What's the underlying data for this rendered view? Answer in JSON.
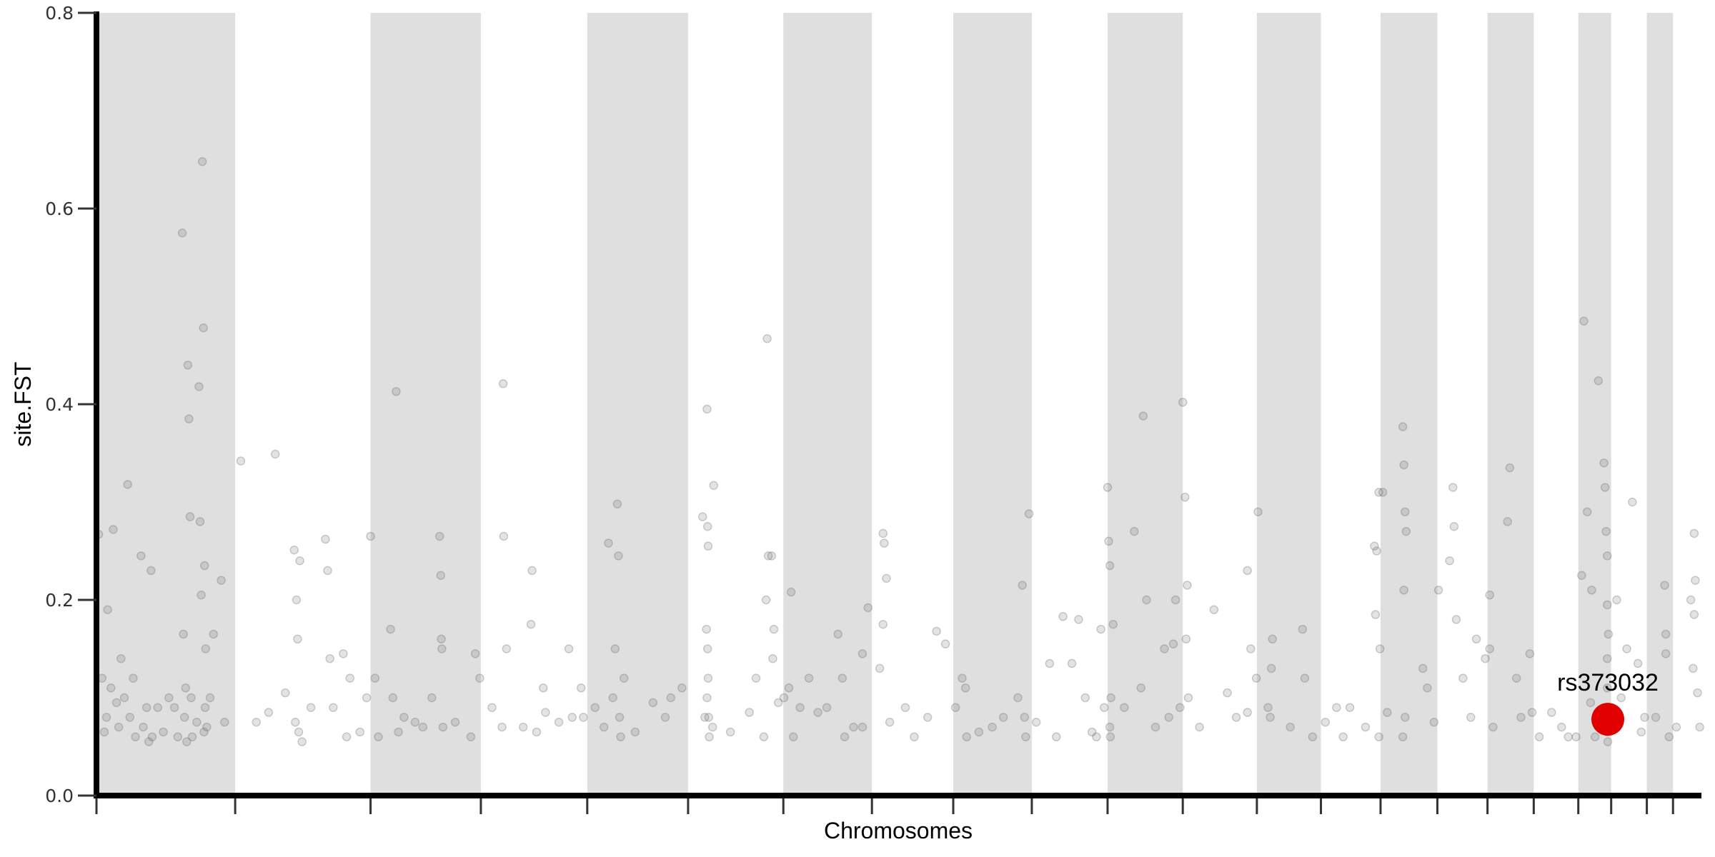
{
  "chart_data": {
    "type": "scatter",
    "subtype": "manhattan",
    "title": "",
    "xlabel": "Chromosomes",
    "ylabel": "site.FST",
    "ylim": [
      0,
      0.8
    ],
    "yticks": [
      "0.0",
      "0.2",
      "0.4",
      "0.6",
      "0.8"
    ],
    "grid": false,
    "x_tick_labels_shown": false,
    "colors": {
      "band": "#dfdfdf",
      "point": "#646464",
      "highlight": "#e00000"
    },
    "chromosomes": [
      {
        "name": "1",
        "length_mb": 249
      },
      {
        "name": "2",
        "length_mb": 243
      },
      {
        "name": "3",
        "length_mb": 198
      },
      {
        "name": "4",
        "length_mb": 191
      },
      {
        "name": "5",
        "length_mb": 181
      },
      {
        "name": "6",
        "length_mb": 171
      },
      {
        "name": "7",
        "length_mb": 159
      },
      {
        "name": "8",
        "length_mb": 146
      },
      {
        "name": "9",
        "length_mb": 141
      },
      {
        "name": "10",
        "length_mb": 136
      },
      {
        "name": "11",
        "length_mb": 135
      },
      {
        "name": "12",
        "length_mb": 133
      },
      {
        "name": "13",
        "length_mb": 115
      },
      {
        "name": "14",
        "length_mb": 107
      },
      {
        "name": "15",
        "length_mb": 102
      },
      {
        "name": "16",
        "length_mb": 90
      },
      {
        "name": "17",
        "length_mb": 83
      },
      {
        "name": "18",
        "length_mb": 80
      },
      {
        "name": "19",
        "length_mb": 59
      },
      {
        "name": "20",
        "length_mb": 64
      },
      {
        "name": "21",
        "length_mb": 47
      },
      {
        "name": "22",
        "length_mb": 51
      }
    ],
    "points_columns": [
      "chromosome",
      "position_mb",
      "site_fst"
    ],
    "points": [
      [
        1,
        4,
        0.267
      ],
      [
        1,
        10,
        0.12
      ],
      [
        1,
        14,
        0.065
      ],
      [
        1,
        18,
        0.08
      ],
      [
        1,
        20,
        0.19
      ],
      [
        1,
        26,
        0.11
      ],
      [
        1,
        30,
        0.272
      ],
      [
        1,
        36,
        0.095
      ],
      [
        1,
        40,
        0.07
      ],
      [
        1,
        44,
        0.14
      ],
      [
        1,
        50,
        0.1
      ],
      [
        1,
        56,
        0.318
      ],
      [
        1,
        60,
        0.08
      ],
      [
        1,
        66,
        0.12
      ],
      [
        1,
        70,
        0.06
      ],
      [
        1,
        80,
        0.245
      ],
      [
        1,
        84,
        0.07
      ],
      [
        1,
        90,
        0.09
      ],
      [
        1,
        94,
        0.055
      ],
      [
        1,
        98,
        0.23
      ],
      [
        1,
        100,
        0.06
      ],
      [
        1,
        110,
        0.09
      ],
      [
        1,
        120,
        0.065
      ],
      [
        1,
        130,
        0.1
      ],
      [
        1,
        140,
        0.09
      ],
      [
        1,
        146,
        0.06
      ],
      [
        1,
        154,
        0.575
      ],
      [
        1,
        156,
        0.165
      ],
      [
        1,
        158,
        0.08
      ],
      [
        1,
        160,
        0.11
      ],
      [
        1,
        162,
        0.055
      ],
      [
        1,
        164,
        0.44
      ],
      [
        1,
        166,
        0.385
      ],
      [
        1,
        168,
        0.285
      ],
      [
        1,
        170,
        0.1
      ],
      [
        1,
        172,
        0.06
      ],
      [
        1,
        180,
        0.075
      ],
      [
        1,
        184,
        0.418
      ],
      [
        1,
        186,
        0.28
      ],
      [
        1,
        188,
        0.205
      ],
      [
        1,
        190,
        0.648
      ],
      [
        1,
        192,
        0.478
      ],
      [
        1,
        193,
        0.065
      ],
      [
        1,
        194,
        0.235
      ],
      [
        1,
        195,
        0.09
      ],
      [
        1,
        196,
        0.15
      ],
      [
        1,
        198,
        0.07
      ],
      [
        1,
        204,
        0.1
      ],
      [
        1,
        210,
        0.165
      ],
      [
        1,
        224,
        0.22
      ],
      [
        1,
        230,
        0.075
      ],
      [
        2,
        10,
        0.342
      ],
      [
        2,
        38,
        0.075
      ],
      [
        2,
        60,
        0.085
      ],
      [
        2,
        72,
        0.349
      ],
      [
        2,
        90,
        0.105
      ],
      [
        2,
        106,
        0.251
      ],
      [
        2,
        108,
        0.075
      ],
      [
        2,
        110,
        0.2
      ],
      [
        2,
        112,
        0.16
      ],
      [
        2,
        114,
        0.065
      ],
      [
        2,
        116,
        0.24
      ],
      [
        2,
        120,
        0.055
      ],
      [
        2,
        136,
        0.09
      ],
      [
        2,
        162,
        0.262
      ],
      [
        2,
        166,
        0.23
      ],
      [
        2,
        170,
        0.14
      ],
      [
        2,
        176,
        0.09
      ],
      [
        2,
        194,
        0.145
      ],
      [
        2,
        200,
        0.06
      ],
      [
        2,
        206,
        0.12
      ],
      [
        2,
        224,
        0.065
      ],
      [
        2,
        236,
        0.1
      ],
      [
        3,
        0,
        0.265
      ],
      [
        3,
        8,
        0.12
      ],
      [
        3,
        14,
        0.06
      ],
      [
        3,
        36,
        0.17
      ],
      [
        3,
        40,
        0.1
      ],
      [
        3,
        46,
        0.413
      ],
      [
        3,
        50,
        0.065
      ],
      [
        3,
        60,
        0.08
      ],
      [
        3,
        80,
        0.075
      ],
      [
        3,
        94,
        0.07
      ],
      [
        3,
        110,
        0.1
      ],
      [
        3,
        124,
        0.265
      ],
      [
        3,
        126,
        0.225
      ],
      [
        3,
        127,
        0.16
      ],
      [
        3,
        128,
        0.15
      ],
      [
        3,
        130,
        0.07
      ],
      [
        3,
        152,
        0.075
      ],
      [
        3,
        180,
        0.06
      ],
      [
        3,
        188,
        0.145
      ],
      [
        3,
        196,
        0.12
      ],
      [
        4,
        20,
        0.09
      ],
      [
        4,
        40,
        0.421
      ],
      [
        4,
        41,
        0.265
      ],
      [
        4,
        46,
        0.15
      ],
      [
        4,
        38,
        0.07
      ],
      [
        4,
        76,
        0.07
      ],
      [
        4,
        90,
        0.175
      ],
      [
        4,
        92,
        0.23
      ],
      [
        4,
        100,
        0.065
      ],
      [
        4,
        112,
        0.11
      ],
      [
        4,
        116,
        0.085
      ],
      [
        4,
        140,
        0.075
      ],
      [
        4,
        158,
        0.15
      ],
      [
        4,
        164,
        0.08
      ],
      [
        4,
        184,
        0.08
      ],
      [
        4,
        180,
        0.11
      ],
      [
        5,
        14,
        0.09
      ],
      [
        5,
        30,
        0.07
      ],
      [
        5,
        38,
        0.258
      ],
      [
        5,
        46,
        0.1
      ],
      [
        5,
        50,
        0.15
      ],
      [
        5,
        54,
        0.298
      ],
      [
        5,
        56,
        0.245
      ],
      [
        5,
        58,
        0.08
      ],
      [
        5,
        60,
        0.06
      ],
      [
        5,
        66,
        0.12
      ],
      [
        5,
        86,
        0.065
      ],
      [
        5,
        118,
        0.095
      ],
      [
        5,
        140,
        0.08
      ],
      [
        5,
        150,
        0.1
      ],
      [
        5,
        170,
        0.11
      ],
      [
        6,
        26,
        0.285
      ],
      [
        6,
        30,
        0.08
      ],
      [
        6,
        34,
        0.395
      ],
      [
        6,
        35,
        0.275
      ],
      [
        6,
        36,
        0.255
      ],
      [
        6,
        33,
        0.17
      ],
      [
        6,
        35,
        0.15
      ],
      [
        6,
        36,
        0.12
      ],
      [
        6,
        34,
        0.1
      ],
      [
        6,
        37,
        0.08
      ],
      [
        6,
        38,
        0.06
      ],
      [
        6,
        46,
        0.317
      ],
      [
        6,
        44,
        0.07
      ],
      [
        6,
        76,
        0.065
      ],
      [
        6,
        110,
        0.085
      ],
      [
        6,
        122,
        0.12
      ],
      [
        6,
        136,
        0.06
      ],
      [
        6,
        142,
        0.467
      ],
      [
        6,
        144,
        0.245
      ],
      [
        6,
        150,
        0.245
      ],
      [
        6,
        154,
        0.17
      ],
      [
        6,
        140,
        0.2
      ],
      [
        6,
        152,
        0.14
      ],
      [
        6,
        162,
        0.095
      ],
      [
        6,
        172,
        0.1
      ],
      [
        7,
        10,
        0.11
      ],
      [
        7,
        14,
        0.208
      ],
      [
        7,
        18,
        0.06
      ],
      [
        7,
        30,
        0.09
      ],
      [
        7,
        46,
        0.12
      ],
      [
        7,
        62,
        0.085
      ],
      [
        7,
        78,
        0.09
      ],
      [
        7,
        98,
        0.165
      ],
      [
        7,
        106,
        0.12
      ],
      [
        7,
        110,
        0.06
      ],
      [
        7,
        126,
        0.07
      ],
      [
        7,
        142,
        0.145
      ],
      [
        7,
        152,
        0.192
      ],
      [
        7,
        142,
        0.07
      ],
      [
        8,
        20,
        0.268
      ],
      [
        8,
        22,
        0.258
      ],
      [
        8,
        20,
        0.175
      ],
      [
        8,
        26,
        0.222
      ],
      [
        8,
        14,
        0.13
      ],
      [
        8,
        32,
        0.075
      ],
      [
        8,
        60,
        0.09
      ],
      [
        8,
        76,
        0.06
      ],
      [
        8,
        100,
        0.08
      ],
      [
        8,
        116,
        0.168
      ],
      [
        8,
        132,
        0.155
      ],
      [
        9,
        4,
        0.09
      ],
      [
        9,
        16,
        0.12
      ],
      [
        9,
        22,
        0.11
      ],
      [
        9,
        24,
        0.06
      ],
      [
        9,
        46,
        0.065
      ],
      [
        9,
        70,
        0.07
      ],
      [
        9,
        90,
        0.08
      ],
      [
        9,
        116,
        0.1
      ],
      [
        9,
        124,
        0.215
      ],
      [
        9,
        128,
        0.08
      ],
      [
        9,
        130,
        0.06
      ],
      [
        9,
        136,
        0.288
      ],
      [
        10,
        8,
        0.075
      ],
      [
        10,
        32,
        0.135
      ],
      [
        10,
        44,
        0.06
      ],
      [
        10,
        56,
        0.183
      ],
      [
        10,
        72,
        0.135
      ],
      [
        10,
        84,
        0.18
      ],
      [
        10,
        96,
        0.1
      ],
      [
        10,
        108,
        0.065
      ],
      [
        10,
        116,
        0.06
      ],
      [
        10,
        124,
        0.17
      ],
      [
        10,
        130,
        0.09
      ],
      [
        11,
        0,
        0.315
      ],
      [
        11,
        2,
        0.26
      ],
      [
        11,
        4,
        0.235
      ],
      [
        11,
        10,
        0.175
      ],
      [
        11,
        6,
        0.1
      ],
      [
        11,
        4,
        0.07
      ],
      [
        11,
        5,
        0.06
      ],
      [
        11,
        30,
        0.09
      ],
      [
        11,
        48,
        0.27
      ],
      [
        11,
        60,
        0.11
      ],
      [
        11,
        64,
        0.388
      ],
      [
        11,
        70,
        0.2
      ],
      [
        11,
        86,
        0.07
      ],
      [
        11,
        102,
        0.15
      ],
      [
        11,
        118,
        0.155
      ],
      [
        11,
        122,
        0.2
      ],
      [
        11,
        110,
        0.08
      ],
      [
        11,
        130,
        0.09
      ],
      [
        12,
        0,
        0.402
      ],
      [
        12,
        4,
        0.305
      ],
      [
        12,
        8,
        0.215
      ],
      [
        12,
        6,
        0.16
      ],
      [
        12,
        10,
        0.1
      ],
      [
        12,
        30,
        0.07
      ],
      [
        12,
        56,
        0.19
      ],
      [
        12,
        80,
        0.105
      ],
      [
        12,
        96,
        0.08
      ],
      [
        12,
        116,
        0.23
      ],
      [
        12,
        122,
        0.15
      ],
      [
        12,
        132,
        0.12
      ],
      [
        12,
        116,
        0.085
      ],
      [
        13,
        2,
        0.29
      ],
      [
        13,
        20,
        0.09
      ],
      [
        13,
        28,
        0.16
      ],
      [
        13,
        26,
        0.13
      ],
      [
        13,
        24,
        0.08
      ],
      [
        13,
        60,
        0.07
      ],
      [
        13,
        82,
        0.17
      ],
      [
        13,
        86,
        0.12
      ],
      [
        13,
        100,
        0.06
      ],
      [
        14,
        8,
        0.075
      ],
      [
        14,
        28,
        0.09
      ],
      [
        14,
        40,
        0.06
      ],
      [
        14,
        52,
        0.09
      ],
      [
        14,
        80,
        0.07
      ],
      [
        14,
        96,
        0.255
      ],
      [
        14,
        100,
        0.25
      ],
      [
        14,
        104,
        0.31
      ],
      [
        14,
        98,
        0.185
      ],
      [
        14,
        106,
        0.15
      ],
      [
        14,
        104,
        0.06
      ],
      [
        15,
        4,
        0.31
      ],
      [
        15,
        12,
        0.085
      ],
      [
        15,
        40,
        0.377
      ],
      [
        15,
        42,
        0.338
      ],
      [
        15,
        44,
        0.29
      ],
      [
        15,
        46,
        0.27
      ],
      [
        15,
        42,
        0.21
      ],
      [
        15,
        40,
        0.06
      ],
      [
        15,
        44,
        0.08
      ],
      [
        15,
        76,
        0.13
      ],
      [
        15,
        84,
        0.11
      ],
      [
        15,
        96,
        0.075
      ],
      [
        16,
        2,
        0.21
      ],
      [
        16,
        22,
        0.24
      ],
      [
        16,
        28,
        0.315
      ],
      [
        16,
        30,
        0.275
      ],
      [
        16,
        34,
        0.18
      ],
      [
        16,
        46,
        0.12
      ],
      [
        16,
        60,
        0.08
      ],
      [
        16,
        70,
        0.16
      ],
      [
        16,
        86,
        0.14
      ],
      [
        17,
        4,
        0.205
      ],
      [
        17,
        4,
        0.15
      ],
      [
        17,
        10,
        0.07
      ],
      [
        17,
        36,
        0.28
      ],
      [
        17,
        40,
        0.335
      ],
      [
        17,
        52,
        0.12
      ],
      [
        17,
        60,
        0.08
      ],
      [
        17,
        76,
        0.145
      ],
      [
        17,
        80,
        0.085
      ],
      [
        18,
        10,
        0.06
      ],
      [
        18,
        32,
        0.085
      ],
      [
        18,
        50,
        0.07
      ],
      [
        18,
        62,
        0.06
      ],
      [
        18,
        76,
        0.06
      ],
      [
        19,
        6,
        0.225
      ],
      [
        19,
        10,
        0.485
      ],
      [
        19,
        16,
        0.29
      ],
      [
        19,
        24,
        0.21
      ],
      [
        19,
        22,
        0.095
      ],
      [
        19,
        36,
        0.424
      ],
      [
        19,
        46,
        0.34
      ],
      [
        19,
        48,
        0.315
      ],
      [
        19,
        50,
        0.27
      ],
      [
        19,
        52,
        0.245
      ],
      [
        19,
        52,
        0.195
      ],
      [
        19,
        54,
        0.165
      ],
      [
        19,
        52,
        0.14
      ],
      [
        19,
        52,
        0.11
      ],
      [
        19,
        52,
        0.065
      ],
      [
        19,
        53,
        0.055
      ],
      [
        19,
        40,
        0.08
      ],
      [
        19,
        30,
        0.06
      ],
      [
        20,
        10,
        0.2
      ],
      [
        20,
        28,
        0.15
      ],
      [
        20,
        38,
        0.3
      ],
      [
        20,
        48,
        0.135
      ],
      [
        20,
        18,
        0.1
      ],
      [
        20,
        54,
        0.065
      ],
      [
        20,
        60,
        0.08
      ],
      [
        21,
        16,
        0.08
      ],
      [
        21,
        32,
        0.215
      ],
      [
        21,
        34,
        0.165
      ],
      [
        21,
        34,
        0.145
      ],
      [
        21,
        40,
        0.06
      ],
      [
        22,
        6,
        0.07
      ],
      [
        22,
        32,
        0.2
      ],
      [
        22,
        38,
        0.268
      ],
      [
        22,
        40,
        0.22
      ],
      [
        22,
        38,
        0.185
      ],
      [
        22,
        36,
        0.13
      ],
      [
        22,
        44,
        0.105
      ],
      [
        22,
        48,
        0.07
      ]
    ],
    "highlight": {
      "label": "rs373032",
      "chromosome": 19,
      "position_mb": 53,
      "site_fst": 0.078
    }
  }
}
